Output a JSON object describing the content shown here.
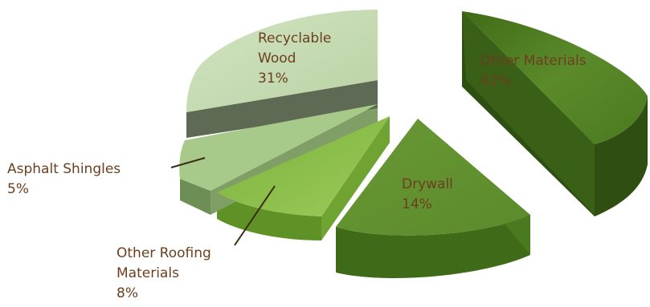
{
  "chart_data": {
    "type": "pie",
    "style": "3d-exploded",
    "legend": "none",
    "slices": [
      {
        "key": "other-materials",
        "label_lines": [
          "Other Materials"
        ],
        "value_text": "42%",
        "value": 42,
        "color": "#4f7d24"
      },
      {
        "key": "drywall",
        "label_lines": [
          "Drywall"
        ],
        "value_text": "14%",
        "value": 14,
        "color": "#6f9a38"
      },
      {
        "key": "other-roofing",
        "label_lines": [
          "Other Roofing",
          "Materials"
        ],
        "value_text": "8%",
        "value": 8,
        "color": "#8bbd4f"
      },
      {
        "key": "asphalt-shingles",
        "label_lines": [
          "Asphalt Shingles"
        ],
        "value_text": "5%",
        "value": 5,
        "color": "#a7c98a"
      },
      {
        "key": "recyclable-wood",
        "label_lines": [
          "Recyclable",
          "Wood"
        ],
        "value_text": "31%",
        "value": 31,
        "color": "#c6dcb4"
      }
    ]
  }
}
